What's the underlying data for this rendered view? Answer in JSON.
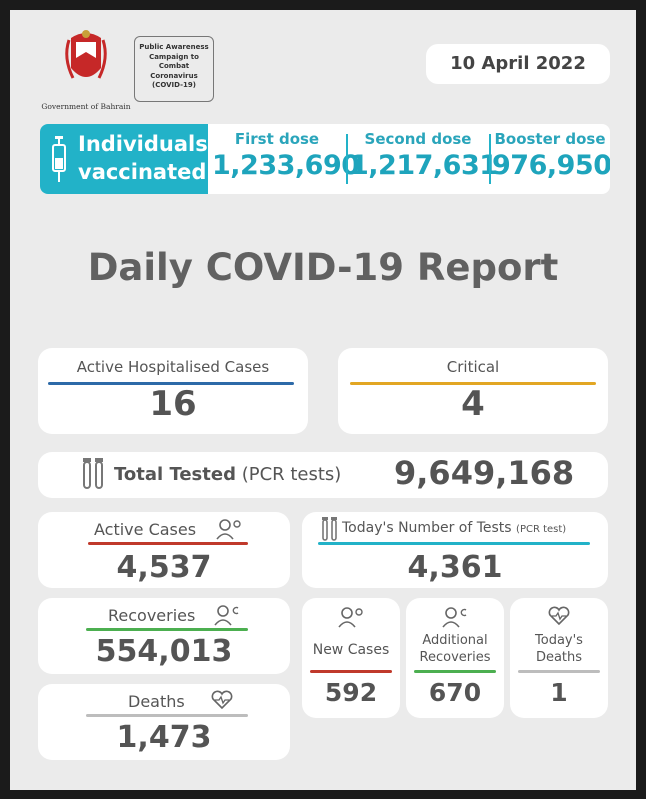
{
  "header": {
    "gov_caption": "Government of Bahrain",
    "campaign_text": "Public Awareness Campaign to Combat Coronavirus (COVID-19)",
    "date": "10 April 2022"
  },
  "vaccination": {
    "title_line1": "Individuals",
    "title_line2": "vaccinated",
    "doses": [
      {
        "label": "First dose",
        "value": "1,233,690"
      },
      {
        "label": "Second dose",
        "value": "1,217,631"
      },
      {
        "label": "Booster dose",
        "value": "976,950"
      }
    ]
  },
  "report_title": "Daily COVID-19 Report",
  "hospital": {
    "label": "Active Hospitalised Cases",
    "value": "16"
  },
  "critical": {
    "label": "Critical",
    "value": "4"
  },
  "total_tested": {
    "label": "Total Tested",
    "sub": "(PCR tests)",
    "value": "9,649,168"
  },
  "active_cases": {
    "label": "Active Cases",
    "value": "4,537"
  },
  "todays_tests": {
    "label": "Today's Number of Tests",
    "sub": "(PCR test)",
    "value": "4,361"
  },
  "recoveries": {
    "label": "Recoveries",
    "value": "554,013"
  },
  "deaths": {
    "label": "Deaths",
    "value": "1,473"
  },
  "new_cases": {
    "label": "New Cases",
    "value": "592"
  },
  "additional_recoveries": {
    "label_line1": "Additional",
    "label_line2": "Recoveries",
    "value": "670"
  },
  "todays_deaths": {
    "label_line1": "Today's",
    "label_line2": "Deaths",
    "value": "1"
  },
  "colors": {
    "accent_teal": "#22b2c8",
    "blue_line": "#2d6aa8",
    "gold_line": "#e2a623",
    "red_line": "#c0392b",
    "green_line": "#4caf50",
    "grey_line": "#bdbdbd"
  },
  "icons": [
    "coat-of-arms-icon",
    "syringe-icon",
    "test-tubes-icon",
    "person-virus-icon",
    "person-recovered-icon",
    "heart-pulse-icon"
  ]
}
